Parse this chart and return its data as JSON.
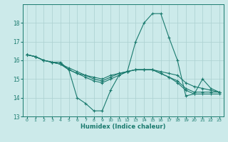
{
  "xlabel": "Humidex (Indice chaleur)",
  "bg_color": "#cceaea",
  "line_color": "#1a7a6e",
  "grid_color": "#aad0d0",
  "xlim": [
    -0.5,
    23.5
  ],
  "ylim": [
    13,
    19
  ],
  "yticks": [
    13,
    14,
    15,
    16,
    17,
    18
  ],
  "xticks": [
    0,
    1,
    2,
    3,
    4,
    5,
    6,
    7,
    8,
    9,
    10,
    11,
    12,
    13,
    14,
    15,
    16,
    17,
    18,
    19,
    20,
    21,
    22,
    23
  ],
  "series": [
    {
      "x": [
        0,
        1,
        2,
        3,
        4,
        5,
        6,
        7,
        8,
        9,
        10,
        11,
        12,
        13,
        14,
        15,
        16,
        17,
        18,
        19,
        20,
        21,
        22,
        23
      ],
      "y": [
        16.3,
        16.2,
        16.0,
        15.9,
        15.9,
        15.5,
        14.0,
        13.7,
        13.3,
        13.3,
        14.4,
        15.2,
        15.4,
        17.0,
        18.0,
        18.5,
        18.5,
        17.2,
        16.0,
        14.1,
        14.2,
        15.0,
        14.5,
        14.3
      ]
    },
    {
      "x": [
        0,
        1,
        2,
        3,
        4,
        5,
        6,
        7,
        8,
        9,
        10,
        11,
        12,
        13,
        14,
        15,
        16,
        17,
        18,
        19,
        20,
        21,
        22,
        23
      ],
      "y": [
        16.3,
        16.2,
        16.0,
        15.9,
        15.8,
        15.5,
        15.3,
        15.2,
        15.1,
        15.0,
        15.2,
        15.3,
        15.4,
        15.5,
        15.5,
        15.5,
        15.4,
        15.3,
        15.2,
        14.8,
        14.6,
        14.5,
        14.4,
        14.3
      ]
    },
    {
      "x": [
        0,
        1,
        2,
        3,
        4,
        5,
        6,
        7,
        8,
        9,
        10,
        11,
        12,
        13,
        14,
        15,
        16,
        17,
        18,
        19,
        20,
        21,
        22,
        23
      ],
      "y": [
        16.3,
        16.2,
        16.0,
        15.9,
        15.8,
        15.6,
        15.4,
        15.2,
        15.0,
        14.9,
        15.1,
        15.3,
        15.4,
        15.5,
        15.5,
        15.5,
        15.3,
        15.1,
        14.9,
        14.5,
        14.3,
        14.3,
        14.3,
        14.3
      ]
    },
    {
      "x": [
        0,
        1,
        2,
        3,
        4,
        5,
        6,
        7,
        8,
        9,
        10,
        11,
        12,
        13,
        14,
        15,
        16,
        17,
        18,
        19,
        20,
        21,
        22,
        23
      ],
      "y": [
        16.3,
        16.2,
        16.0,
        15.9,
        15.8,
        15.5,
        15.3,
        15.1,
        14.9,
        14.8,
        15.0,
        15.2,
        15.4,
        15.5,
        15.5,
        15.5,
        15.3,
        15.1,
        14.8,
        14.4,
        14.2,
        14.2,
        14.2,
        14.2
      ]
    }
  ]
}
